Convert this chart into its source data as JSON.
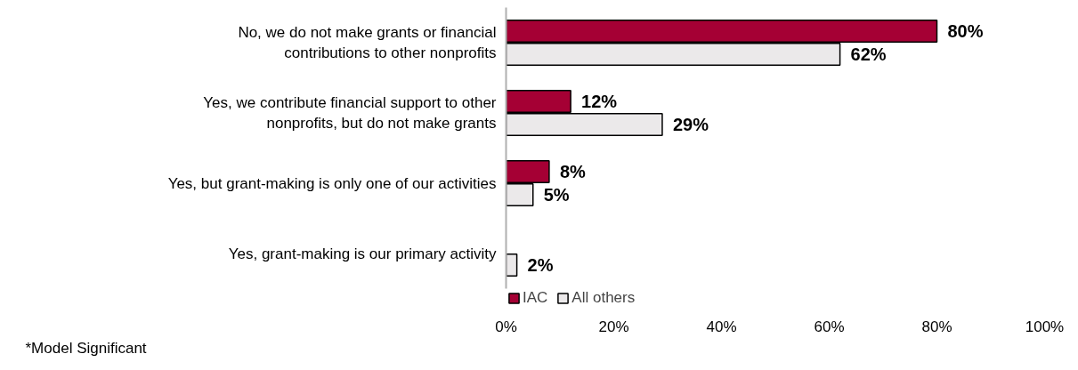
{
  "chart_data": {
    "type": "bar",
    "orientation": "horizontal",
    "categories": [
      "No, we do not make grants or financial\ncontributions to other nonprofits",
      "Yes, we contribute financial support to other\nnonprofits, but do not make grants",
      "Yes, but grant-making is only one of our activities",
      "Yes, grant-making is our primary activity"
    ],
    "series": [
      {
        "name": "IAC",
        "color": "#a50034",
        "values": [
          80,
          12,
          8,
          null
        ]
      },
      {
        "name": "All others",
        "color": "#ebe9ea",
        "values": [
          62,
          29,
          5,
          2
        ]
      }
    ],
    "xlim": [
      0,
      100
    ],
    "xticks": [
      {
        "value": 0,
        "label": "0%"
      },
      {
        "value": 20,
        "label": "20%"
      },
      {
        "value": 40,
        "label": "40%"
      },
      {
        "value": 60,
        "label": "60%"
      },
      {
        "value": 80,
        "label": "80%"
      },
      {
        "value": 100,
        "label": "100%"
      }
    ],
    "value_labels": [
      [
        "80%",
        "12%",
        "8%",
        null
      ],
      [
        "62%",
        "29%",
        "5%",
        "2%"
      ]
    ],
    "legend": "bottom",
    "grid": false,
    "annotations": [
      "*Model Significant"
    ]
  }
}
